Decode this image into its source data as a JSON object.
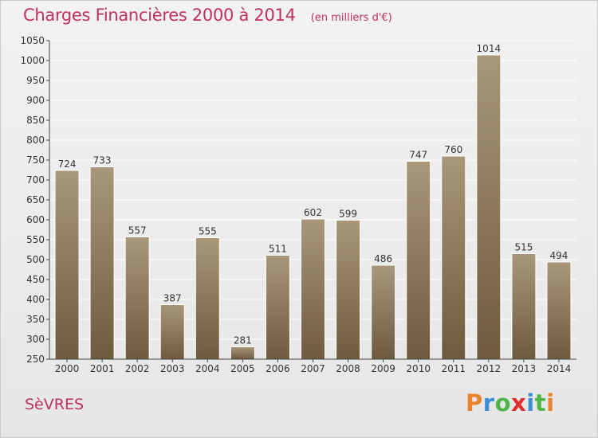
{
  "header": {
    "title": "Charges Financières 2000 à 2014",
    "subtitle": "(en milliers d'€)"
  },
  "footer": {
    "town": "SèVRES",
    "logo_text": "Proxiti"
  },
  "colors": {
    "title": "#c0305e",
    "bar_top": "#a99779",
    "bar_bottom": "#6e5b3e",
    "grid": "#ffffff",
    "logo_letters": [
      "#e8832a",
      "#3d8fd1",
      "#4cb748",
      "#e02f2f",
      "#3d8fd1",
      "#4cb748",
      "#e8832a"
    ]
  },
  "chart_data": {
    "type": "bar",
    "categories": [
      "2000",
      "2001",
      "2002",
      "2003",
      "2004",
      "2005",
      "2006",
      "2007",
      "2008",
      "2009",
      "2010",
      "2011",
      "2012",
      "2013",
      "2014"
    ],
    "values": [
      724,
      733,
      557,
      387,
      555,
      281,
      511,
      602,
      599,
      486,
      747,
      760,
      1014,
      515,
      494
    ],
    "y_ticks": [
      250,
      300,
      350,
      400,
      450,
      500,
      550,
      600,
      650,
      700,
      750,
      800,
      850,
      900,
      950,
      1000,
      1050
    ],
    "ylim": [
      250,
      1050
    ],
    "grid": true,
    "data_labels": true,
    "legend": "none"
  }
}
